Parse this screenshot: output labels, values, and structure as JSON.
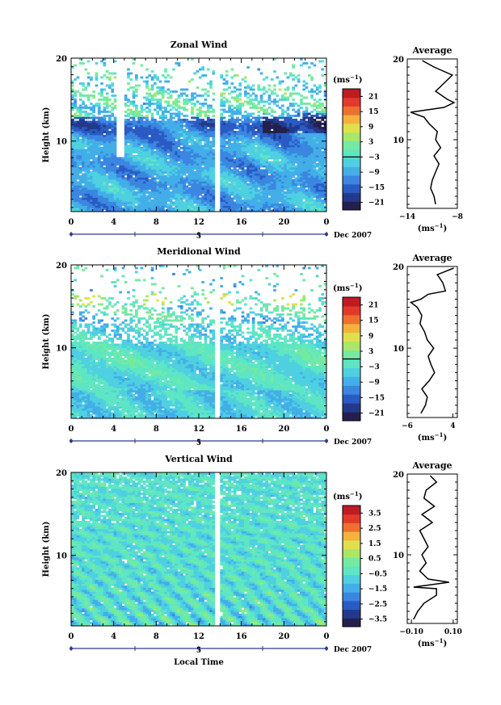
{
  "x_axis": {
    "ticks": [
      "0",
      "4",
      "8",
      "12",
      "16",
      "20",
      "0"
    ],
    "day_label": "5",
    "date_label": "Dec 2007",
    "label": "Local Time"
  },
  "colors": [
    "#24204e",
    "#233a8c",
    "#2a5bc4",
    "#3a86e0",
    "#43aee8",
    "#4fd0e0",
    "#5ee6c4",
    "#74eaa0",
    "#a8e866",
    "#e0e04c",
    "#f2b23c",
    "#ee7030",
    "#e23a2a",
    "#c01a22"
  ],
  "chart_data": [
    {
      "type": "heatmap",
      "title": "Zonal Wind",
      "ylabel": "Height (km)",
      "xlim": [
        0,
        24
      ],
      "ylim": [
        1.5,
        20
      ],
      "y_ticks": [
        "10",
        "20"
      ],
      "unit_label": "(ms",
      "unit_exp": "−1",
      "colorbar_ticks": [
        "21",
        "15",
        "9",
        "3",
        "−3",
        "−9",
        "−15",
        "−21"
      ],
      "colorbar_range": [
        -24,
        24
      ],
      "zero_line": -3,
      "profile": {
        "title": "Average",
        "xlim": [
          -14,
          -8
        ],
        "x_ticks": [
          "−14",
          "−8"
        ],
        "y_ticks": [
          "10",
          "20"
        ],
        "unit_label": "(ms",
        "unit_exp": "−1",
        "heights": [
          2,
          3,
          4,
          5,
          6,
          7,
          8,
          9,
          10,
          11,
          12,
          12.8,
          13.4,
          14,
          14.6,
          15,
          16,
          17,
          18,
          19,
          19.8
        ],
        "values": [
          -10.6,
          -10.8,
          -11.2,
          -11.0,
          -10.6,
          -10.2,
          -10.8,
          -10.0,
          -10.6,
          -10.4,
          -11.4,
          -12.0,
          -13.6,
          -9.6,
          -8.4,
          -9.2,
          -10.6,
          -9.6,
          -8.6,
          -10.8,
          -12.2
        ]
      }
    },
    {
      "type": "heatmap",
      "title": "Meridional Wind",
      "ylabel": "Height (km)",
      "xlim": [
        0,
        24
      ],
      "ylim": [
        1.5,
        20
      ],
      "y_ticks": [
        "10",
        "20"
      ],
      "unit_label": "(ms",
      "unit_exp": "−1",
      "colorbar_ticks": [
        "21",
        "15",
        "9",
        "3",
        "−3",
        "−9",
        "−15",
        "−21"
      ],
      "colorbar_range": [
        -24,
        24
      ],
      "zero_line": 0,
      "profile": {
        "title": "Average",
        "xlim": [
          -6,
          5
        ],
        "x_ticks": [
          "−6",
          "4"
        ],
        "y_ticks": [
          "10",
          "20"
        ],
        "unit_label": "(ms",
        "unit_exp": "−1",
        "heights": [
          2,
          3,
          4,
          5,
          6,
          7,
          8,
          9,
          10,
          11,
          12,
          13,
          14,
          15,
          15.6,
          16,
          16.6,
          17,
          18,
          19,
          19.8
        ],
        "values": [
          -3.0,
          -2.0,
          -1.6,
          -2.8,
          -1.2,
          0.0,
          -0.8,
          -1.4,
          -0.2,
          -1.6,
          -2.2,
          -3.2,
          -2.8,
          -3.8,
          -5.2,
          -3.0,
          -1.4,
          2.4,
          1.8,
          0.6,
          4.2
        ]
      }
    },
    {
      "type": "heatmap",
      "title": "Vertical Wind",
      "ylabel": "Height (km)",
      "xlim": [
        0,
        24
      ],
      "ylim": [
        1.5,
        20
      ],
      "y_ticks": [
        "10",
        "20"
      ],
      "unit_label": "(ms",
      "unit_exp": "−1",
      "colorbar_ticks": [
        "3.5",
        "2.5",
        "1.5",
        "0.5",
        "−0.5",
        "−1.5",
        "−2.5",
        "−3.5"
      ],
      "colorbar_range": [
        -4,
        4
      ],
      "zero_line": null,
      "profile": {
        "title": "Average",
        "xlim": [
          -0.12,
          0.12
        ],
        "x_ticks": [
          "−0.10",
          "0.10"
        ],
        "y_ticks": [
          "10",
          "20"
        ],
        "unit_label": "(ms",
        "unit_exp": "−1",
        "heights": [
          2,
          3,
          4,
          5,
          5.8,
          6,
          6.6,
          7,
          8,
          9,
          10,
          11,
          12,
          13,
          14,
          15,
          16,
          17,
          18,
          19,
          19.8
        ],
        "values": [
          -0.09,
          -0.07,
          -0.04,
          0.02,
          0.02,
          -0.09,
          0.08,
          -0.02,
          -0.06,
          -0.03,
          -0.05,
          -0.02,
          -0.04,
          -0.06,
          0.0,
          -0.05,
          0.01,
          -0.04,
          -0.03,
          0.02,
          -0.01
        ]
      }
    }
  ]
}
